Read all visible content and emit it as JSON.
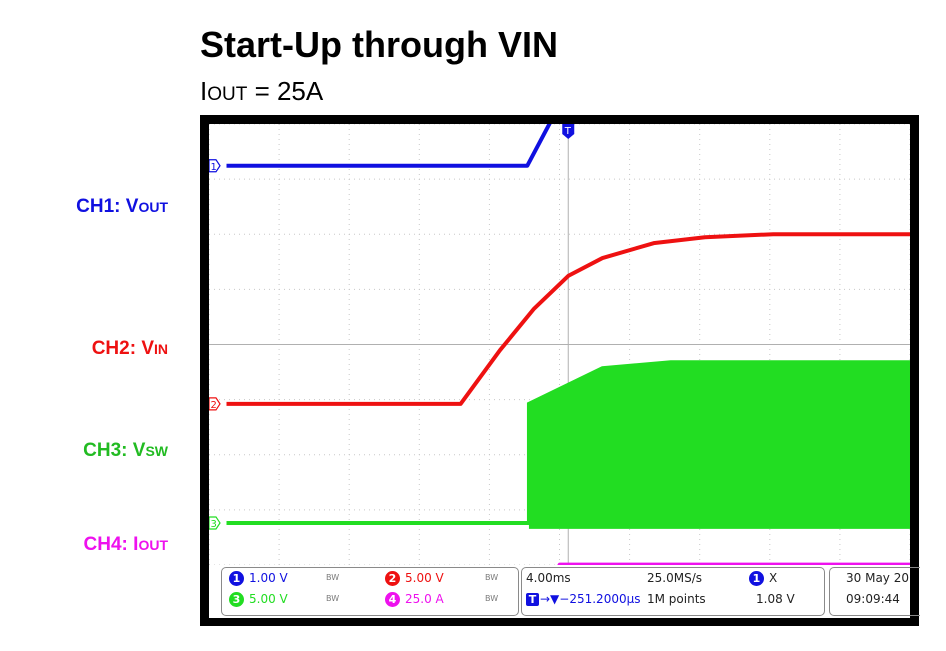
{
  "header": {
    "title": "Start-Up through VIN",
    "subtitle_main": "I",
    "subtitle_sub": "OUT",
    "subtitle_rest": " = 25A"
  },
  "channels": [
    {
      "id": "1",
      "prefix": "CH1: V",
      "sub": "OUT",
      "color": "#1010e0"
    },
    {
      "id": "2",
      "prefix": "CH2: V",
      "sub": "IN",
      "color": "#ee1111"
    },
    {
      "id": "3",
      "prefix": "CH3: V",
      "sub": "SW",
      "color": "#22dd22"
    },
    {
      "id": "4",
      "prefix": "CH4: I",
      "sub": "OUT",
      "color": "#ee11ee"
    }
  ],
  "trigger_marker": "T",
  "status": {
    "ch1_scale": "1.00 V",
    "ch2_scale": "5.00 V",
    "ch3_scale": "5.00 V",
    "ch4_scale": "25.0 A",
    "bw_symbol": "BW",
    "timebase": "4.00ms",
    "sample_rate": "25.0MS/s",
    "trigger_position": "→▼−251.2000µs",
    "record_length": "1M points",
    "trigger_source": "1",
    "trigger_slope": "X",
    "trigger_level": "1.08 V",
    "date": "30 May 20",
    "time": "09:09:44"
  },
  "chart_data": {
    "type": "line",
    "title": "Start-Up through VIN",
    "subtitle": "IOUT = 25A",
    "x_unit_per_div": "4.00ms",
    "divisions_x": 10,
    "divisions_y": 8,
    "grid": true,
    "trigger_time_ms": -0.2512,
    "x_range_ms": [
      -20,
      20
    ],
    "series": [
      {
        "name": "CH1: VOUT",
        "scale_per_div": "1.00 V",
        "color": "#1010e0",
        "x_ms": [
          -20,
          -2.4,
          0,
          20
        ],
        "y_div": [
          -0.5,
          -0.5,
          0.8,
          0.8
        ]
      },
      {
        "name": "CH2: VIN",
        "scale_per_div": "5.00 V",
        "color": "#ee1111",
        "x_ms": [
          -20,
          -6.3,
          -4,
          -2,
          0,
          2,
          5,
          8,
          12,
          20
        ],
        "y_div": [
          -4.5,
          -4.5,
          -3.6,
          -2.9,
          -2.35,
          -2.05,
          -1.8,
          -1.7,
          -1.65,
          -1.65
        ]
      },
      {
        "name": "CH3: VSW",
        "scale_per_div": "5.00 V",
        "color": "#22dd22",
        "x_ms": [
          -20,
          -2.3,
          -2.3,
          2,
          6,
          20
        ],
        "y_div": [
          -6.5,
          -6.5,
          -4.5,
          -3.9,
          -3.8,
          -3.8
        ],
        "band_bottom_div": -6.6
      },
      {
        "name": "CH4: IOUT",
        "scale_per_div": "25.0 A",
        "color": "#ee11ee",
        "x_ms": [
          -20,
          -2.4,
          -0.5,
          20
        ],
        "y_div": [
          -8.3,
          -8.3,
          -7.2,
          -7.2
        ]
      }
    ]
  }
}
